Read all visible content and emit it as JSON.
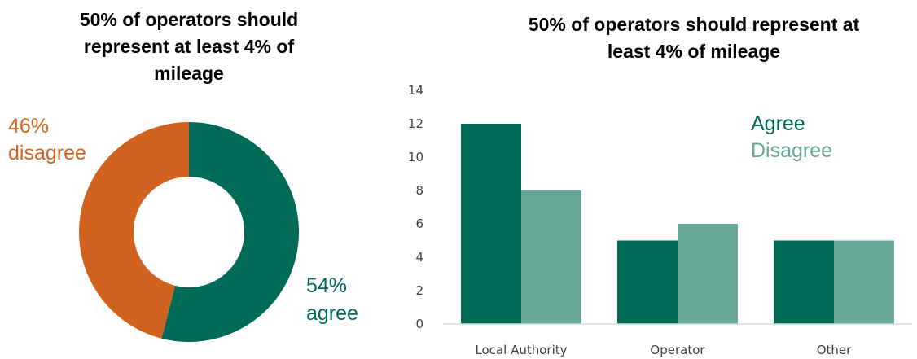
{
  "colors": {
    "agree": "#006a58",
    "disagree": "#d2621f",
    "disagree_bar": "#66a797"
  },
  "chart_data": [
    {
      "type": "pie",
      "title": "50% of operators should represent at least 4% of mileage",
      "title_lines": [
        "50% of operators should",
        "represent at least 4% of",
        "mileage"
      ],
      "slices": [
        {
          "label_pct": "54%",
          "label_text": "agree",
          "value": 54
        },
        {
          "label_pct": "46%",
          "label_text": "disagree",
          "value": 46
        }
      ]
    },
    {
      "type": "bar",
      "title": "50% of operators should represent at least 4% of mileage",
      "title_lines": [
        "50% of operators should represent at",
        "least 4% of mileage"
      ],
      "categories": [
        "Local Authority",
        "Operator",
        "Other"
      ],
      "series": [
        {
          "name": "Agree",
          "values": [
            12,
            5,
            5
          ]
        },
        {
          "name": "Disagree",
          "values": [
            8,
            6,
            5
          ]
        }
      ],
      "ylim": [
        0,
        14
      ],
      "yticks": [
        "0",
        "2",
        "4",
        "6",
        "8",
        "10",
        "12",
        "14"
      ],
      "grid": false,
      "legend": "top-right"
    }
  ]
}
